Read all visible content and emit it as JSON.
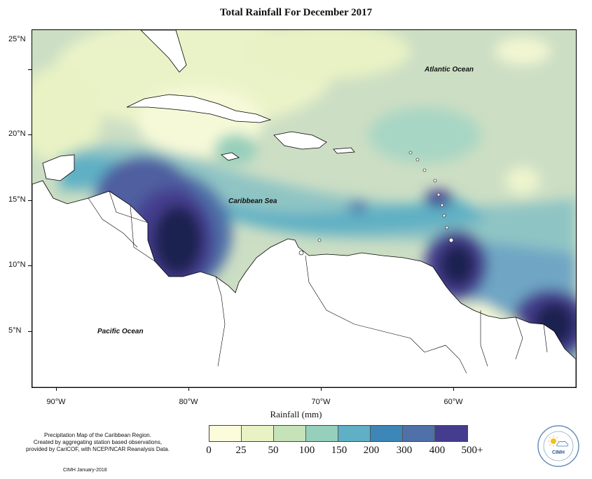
{
  "title": "Total Rainfall For December 2017",
  "axes": {
    "lat_labels": [
      "25°N",
      "20°N",
      "15°N",
      "10°N",
      "5°N"
    ],
    "lon_labels": [
      "90°W",
      "80°W",
      "70°W",
      "60°W"
    ],
    "xlabel": "Rainfall (mm)"
  },
  "ocean_labels": {
    "atlantic": "Atlantic Ocean",
    "caribbean": "Caribbean Sea",
    "pacific": "Pacific Ocean"
  },
  "legend": {
    "labels": [
      "0",
      "25",
      "50",
      "100",
      "150",
      "200",
      "300",
      "400",
      "500+"
    ],
    "colors": [
      "#fcfcdc",
      "#e8f2c4",
      "#c6e2b8",
      "#96cfbb",
      "#5fb0c4",
      "#3c86b8",
      "#4f70a8",
      "#443d8e",
      "#1b2150"
    ]
  },
  "description": {
    "line1": "Precipitation Map of the Caribbean Region.",
    "line2": "Created by aggregating station based observations,",
    "line3": "provided by CariCOF, with NCEP/NCAR Reanalysis Data."
  },
  "credit": "CIMH January-2018",
  "logo": {
    "text": "CIMH",
    "icon": "sun-cloud-icon"
  },
  "colors": {
    "land": "#ffffff",
    "coast": "#000000",
    "background_field": "#ccdec4"
  }
}
